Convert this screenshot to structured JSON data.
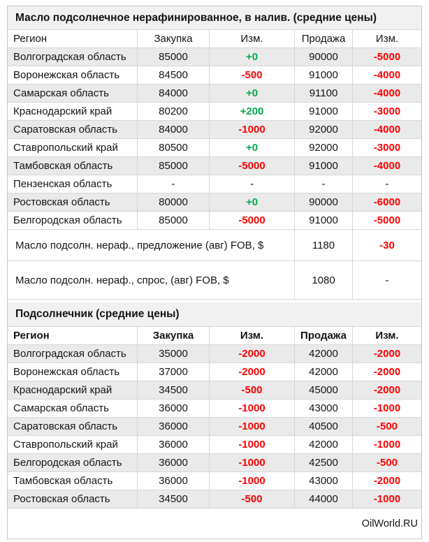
{
  "palette": {
    "positive_green": "#00a94c",
    "negative_red": "#fe0000",
    "stripe_gray": "#eaeaea",
    "title_bg": "#f1f1f1",
    "border": "#d6d6d6"
  },
  "table1": {
    "title": "Масло подсолнечное нерафинированное, в налив.  (средние цены)",
    "headers": {
      "region": "Регион",
      "purchase": "Закупка",
      "change1": "Изм.",
      "sale": "Продажа",
      "change2": "Изм."
    },
    "rows": [
      {
        "region": "Волгоградская область",
        "purchase": "85000",
        "chg1": "+0",
        "sale": "90000",
        "chg2": "-5000"
      },
      {
        "region": "Воронежская область",
        "purchase": "84500",
        "chg1": "-500",
        "sale": "91000",
        "chg2": "-4000"
      },
      {
        "region": "Самарская область",
        "purchase": "84000",
        "chg1": "+0",
        "sale": "91100",
        "chg2": "-4000"
      },
      {
        "region": "Краснодарский край",
        "purchase": "80200",
        "chg1": "+200",
        "sale": "91000",
        "chg2": "-3000"
      },
      {
        "region": "Саратовская область",
        "purchase": "84000",
        "chg1": "-1000",
        "sale": "92000",
        "chg2": "-4000"
      },
      {
        "region": "Ставропольский край",
        "purchase": "80500",
        "chg1": "+0",
        "sale": "92000",
        "chg2": "-3000"
      },
      {
        "region": "Тамбовская область",
        "purchase": "85000",
        "chg1": "-5000",
        "sale": "91000",
        "chg2": "-4000"
      },
      {
        "region": "Пензенская область",
        "purchase": "-",
        "chg1": "-",
        "sale": "-",
        "chg2": "-"
      },
      {
        "region": "Ростовская область",
        "purchase": "80000",
        "chg1": "+0",
        "sale": "90000",
        "chg2": "-6000"
      },
      {
        "region": "Белгородская область",
        "purchase": "85000",
        "chg1": "-5000",
        "sale": "91000",
        "chg2": "-5000"
      }
    ],
    "fob_rows": [
      {
        "label": "Масло подсолн. нераф., предложение (авг) FOB, $",
        "value": "1180",
        "chg": "-30"
      },
      {
        "label": "Масло подсолн. нераф., спрос, (авг) FOB, $",
        "value": "1080",
        "chg": "-"
      }
    ]
  },
  "table2": {
    "title": "Подсолнечник (средние цены)",
    "headers": {
      "region": "Регион",
      "purchase": "Закупка",
      "change1": "Изм.",
      "sale": "Продажа",
      "change2": "Изм."
    },
    "rows": [
      {
        "region": "Волгоградская область",
        "purchase": "35000",
        "chg1": "-2000",
        "sale": "42000",
        "chg2": "-2000"
      },
      {
        "region": "Воронежская область",
        "purchase": "37000",
        "chg1": "-2000",
        "sale": "42000",
        "chg2": "-2000"
      },
      {
        "region": "Краснодарский край",
        "purchase": "34500",
        "chg1": "-500",
        "sale": "45000",
        "chg2": "-2000"
      },
      {
        "region": "Самарская область",
        "purchase": "36000",
        "chg1": "-1000",
        "sale": "43000",
        "chg2": "-1000"
      },
      {
        "region": "Саратовская область",
        "purchase": "36000",
        "chg1": "-1000",
        "sale": "40500",
        "chg2": "-500"
      },
      {
        "region": "Ставропольский край",
        "purchase": "36000",
        "chg1": "-1000",
        "sale": "42000",
        "chg2": "-1000"
      },
      {
        "region": "Белгородская область",
        "purchase": "36000",
        "chg1": "-1000",
        "sale": "42500",
        "chg2": "-500"
      },
      {
        "region": "Тамбовская область",
        "purchase": "36000",
        "chg1": "-1000",
        "sale": "43000",
        "chg2": "-2000"
      },
      {
        "region": "Ростовская область",
        "purchase": "34500",
        "chg1": "-500",
        "sale": "44000",
        "chg2": "-1000"
      }
    ]
  },
  "footer": {
    "brand": "OilWorld.RU"
  }
}
